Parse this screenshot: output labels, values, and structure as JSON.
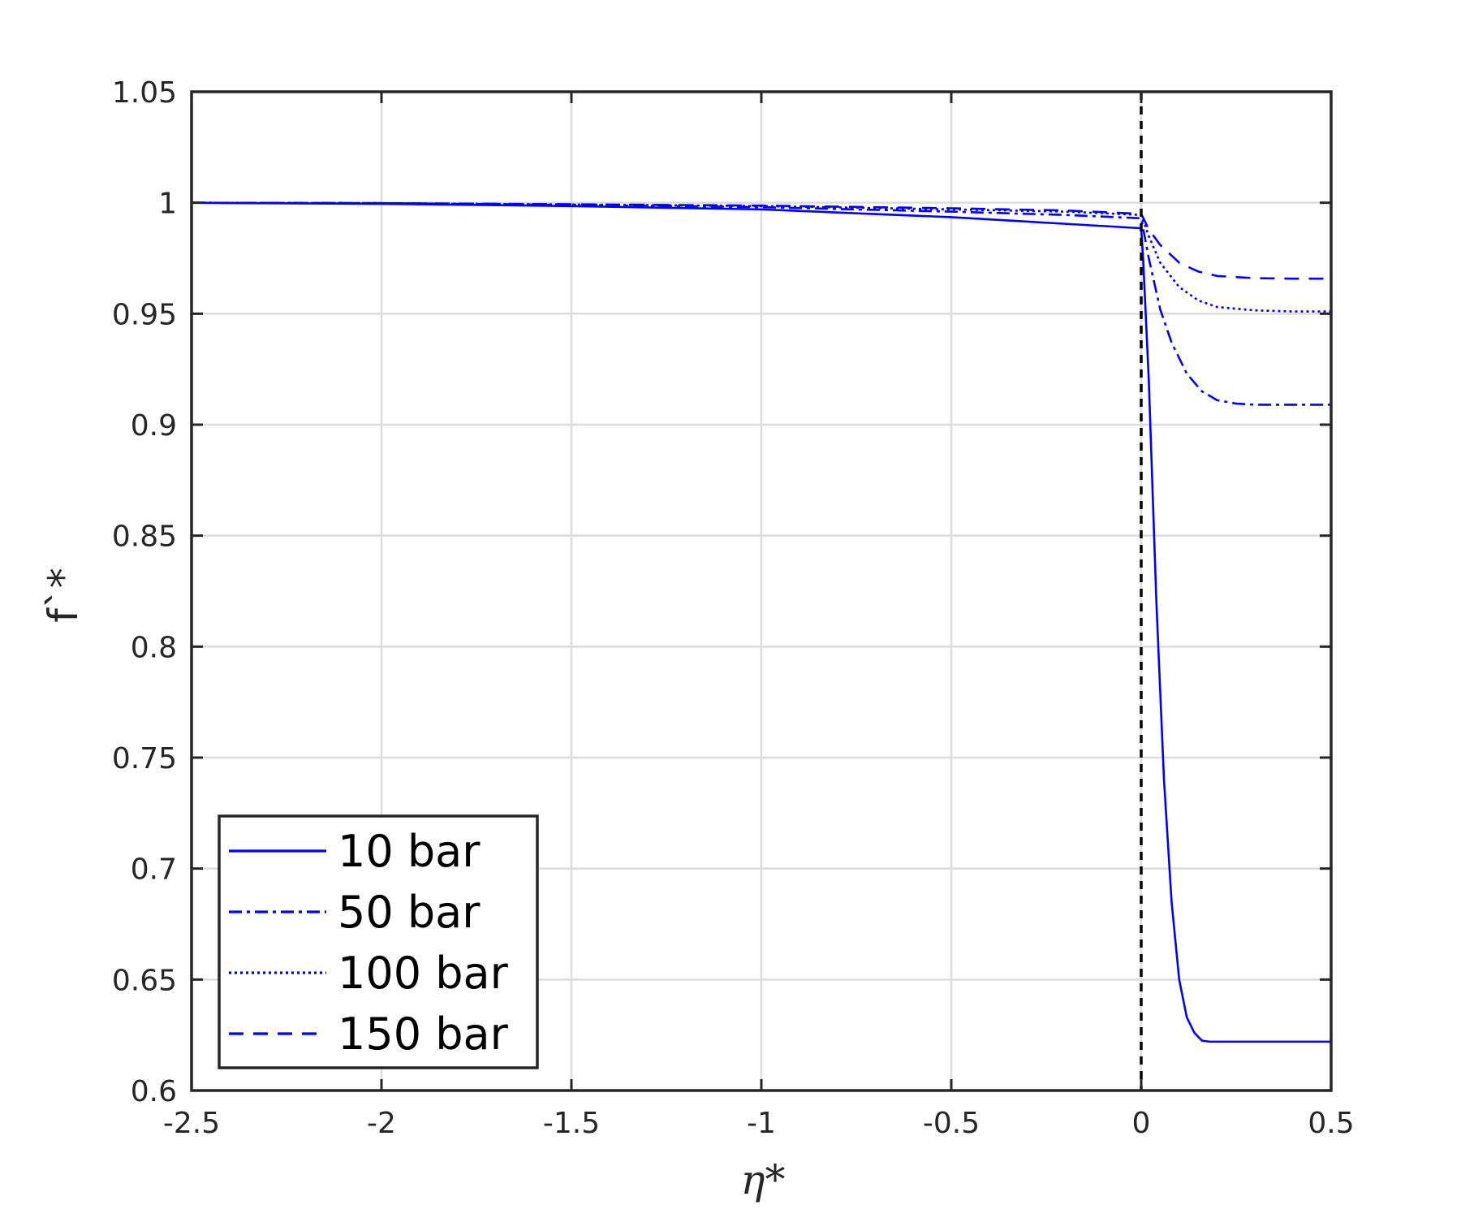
{
  "chart_data": {
    "type": "line",
    "xlabel": "η*",
    "ylabel": "f`*",
    "xlim": [
      -2.5,
      0.5
    ],
    "ylim": [
      0.6,
      1.05
    ],
    "xticks": [
      -2.5,
      -2,
      -1.5,
      -1,
      -0.5,
      0,
      0.5
    ],
    "yticks": [
      0.6,
      0.65,
      0.7,
      0.75,
      0.8,
      0.85,
      0.9,
      0.95,
      1,
      1.05
    ],
    "xtick_labels": [
      "-2.5",
      "-2",
      "-1.5",
      "-1",
      "-0.5",
      "0",
      "0.5"
    ],
    "ytick_labels": [
      "0.6",
      "0.65",
      "0.7",
      "0.75",
      "0.8",
      "0.85",
      "0.9",
      "0.95",
      "1",
      "1.05"
    ],
    "grid": true,
    "legend_position": "bottom-left",
    "vertical_reference_line": {
      "x": 0,
      "style": "dashed",
      "color": "#000000"
    },
    "series": [
      {
        "name": "10 bar",
        "style": "solid",
        "color": "#0000ff",
        "x": [
          -2.5,
          -2.0,
          -1.5,
          -1.0,
          -0.5,
          -0.2,
          0.0,
          0.005,
          0.02,
          0.04,
          0.06,
          0.08,
          0.1,
          0.12,
          0.14,
          0.16,
          0.18,
          0.25,
          0.35,
          0.5
        ],
        "y": [
          1.0,
          0.9995,
          0.9985,
          0.997,
          0.9935,
          0.9905,
          0.9885,
          0.975,
          0.92,
          0.82,
          0.74,
          0.685,
          0.65,
          0.633,
          0.626,
          0.6225,
          0.622,
          0.622,
          0.622,
          0.622
        ]
      },
      {
        "name": "50 bar",
        "style": "dashdot",
        "color": "#0000ff",
        "x": [
          -2.5,
          -2.0,
          -1.5,
          -1.0,
          -0.5,
          -0.2,
          0.0,
          0.02,
          0.05,
          0.08,
          0.12,
          0.16,
          0.2,
          0.25,
          0.3,
          0.4,
          0.5
        ],
        "y": [
          1.0,
          0.9998,
          0.999,
          0.998,
          0.996,
          0.9945,
          0.993,
          0.975,
          0.952,
          0.937,
          0.923,
          0.915,
          0.911,
          0.9095,
          0.909,
          0.909,
          0.909
        ]
      },
      {
        "name": "100 bar",
        "style": "dotted",
        "color": "#0000ff",
        "x": [
          -2.5,
          -2.0,
          -1.5,
          -1.0,
          -0.5,
          -0.2,
          0.0,
          0.02,
          0.05,
          0.1,
          0.15,
          0.2,
          0.3,
          0.4,
          0.5
        ],
        "y": [
          1.0,
          0.9998,
          0.9992,
          0.9985,
          0.997,
          0.996,
          0.9945,
          0.985,
          0.973,
          0.962,
          0.956,
          0.953,
          0.9515,
          0.951,
          0.951
        ]
      },
      {
        "name": "150 bar",
        "style": "dashed",
        "color": "#0000ff",
        "x": [
          -2.5,
          -2.0,
          -1.5,
          -1.0,
          -0.5,
          -0.2,
          0.0,
          0.02,
          0.05,
          0.1,
          0.15,
          0.2,
          0.3,
          0.4,
          0.5
        ],
        "y": [
          1.0,
          0.9998,
          0.9993,
          0.9987,
          0.9975,
          0.9965,
          0.995,
          0.988,
          0.981,
          0.973,
          0.969,
          0.967,
          0.966,
          0.9658,
          0.9658
        ]
      }
    ]
  }
}
